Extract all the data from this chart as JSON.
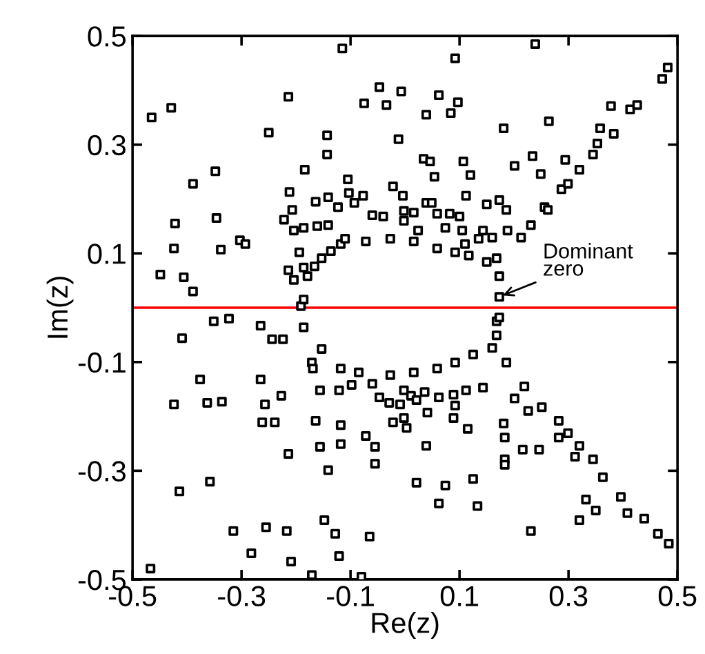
{
  "chart_data": {
    "type": "scatter",
    "xlabel": "Re(z)",
    "ylabel": "Im(z)",
    "xlim": [
      -0.5,
      0.5
    ],
    "ylim": [
      -0.5,
      0.5
    ],
    "xticks": [
      -0.5,
      -0.3,
      -0.1,
      0.1,
      0.3,
      0.5
    ],
    "yticks": [
      -0.5,
      -0.3,
      -0.1,
      0.1,
      0.3,
      0.5
    ],
    "grid": false,
    "legend": false,
    "marker": "square",
    "ref_lines": [
      {
        "axis": "y",
        "value": 0,
        "color": "#ff0000"
      }
    ],
    "annotations": [
      {
        "text": "Dominant\nzero",
        "x": 0.173,
        "y": 0.02
      }
    ],
    "series": [
      {
        "color": "#000000",
        "x": [
          -0.191,
          -0.186,
          -0.179,
          -0.166,
          -0.153,
          -0.136,
          -0.118,
          -0.11,
          -0.072,
          -0.027,
          0.016,
          0.059,
          0.092,
          0.117,
          0.15,
          0.168,
          0.173,
          0.173,
          -0.186,
          -0.153,
          -0.118,
          -0.085,
          -0.027,
          0.016,
          0.059,
          0.092,
          0.125,
          0.16,
          0.168,
          0.168,
          0.173,
          0.186,
          0.219,
          0.251,
          0.282,
          0.299,
          0.32,
          0.345,
          0.363,
          0.396,
          0.439,
          0.464,
          0.484,
          0.312,
          0.332,
          0.35,
          0.32,
          0.408,
          0.213,
          0.231,
          0.256,
          0.287,
          0.299,
          0.32,
          0.345,
          0.353,
          0.358,
          0.383,
          0.378,
          0.413,
          0.426,
          0.472,
          0.482,
          -0.465,
          -0.429,
          -0.389,
          -0.422,
          -0.424,
          -0.449,
          -0.406,
          -0.389,
          -0.348,
          -0.346,
          -0.338,
          -0.303,
          -0.293,
          -0.25,
          -0.214,
          -0.212,
          -0.207,
          -0.222,
          -0.204,
          -0.186,
          -0.161,
          -0.141,
          -0.143,
          -0.143,
          -0.184,
          -0.164,
          -0.141,
          -0.115,
          -0.123,
          -0.194,
          -0.214,
          -0.186,
          -0.204,
          -0.105,
          -0.103,
          0.092,
          0.239,
          -0.047,
          -0.007,
          -0.075,
          -0.034,
          0.062,
          0.097,
          0.039,
          0.084,
          0.181,
          0.264,
          -0.012,
          0.034,
          0.046,
          0.107,
          0.054,
          0.12,
          0.201,
          0.234,
          0.249,
          0.294,
          0.112,
          0.15,
          0.173,
          0.186,
          0.039,
          0.049,
          -0.004,
          -0.022,
          -0.06,
          -0.093,
          -0.077,
          -0.002,
          0.016,
          0.059,
          0.082,
          0.1,
          0.074,
          0.105,
          0.143,
          0.16,
          0.188,
          0.135,
          0.11,
          -0.04,
          -0.002,
          0.024,
          0.262,
          -0.409,
          -0.376,
          -0.424,
          -0.363,
          -0.336,
          -0.265,
          -0.257,
          -0.262,
          -0.239,
          -0.227,
          -0.214,
          -0.358,
          -0.414,
          -0.315,
          -0.255,
          -0.217,
          -0.282,
          -0.209,
          -0.467,
          -0.171,
          -0.148,
          -0.128,
          -0.121,
          -0.164,
          -0.156,
          -0.141,
          -0.118,
          -0.118,
          -0.156,
          -0.121,
          -0.171,
          -0.169,
          -0.244,
          -0.224,
          -0.265,
          -0.351,
          -0.323,
          -0.098,
          -0.06,
          -0.047,
          -0.029,
          -0.009,
          -0.022,
          -0.002,
          0.003,
          -0.002,
          0.011,
          0.021,
          0.036,
          0.041,
          0.062,
          0.089,
          0.092,
          0.089,
          0.115,
          0.112,
          0.143,
          0.181,
          0.183,
          0.183,
          0.183,
          0.201,
          0.226,
          0.216,
          0.246,
          0.282,
          -0.072,
          -0.055,
          -0.055,
          0.039,
          0.021,
          0.074,
          0.125,
          0.062,
          0.133,
          0.231,
          -0.065,
          -0.08
        ],
        "values": [
          0.003,
          0.015,
          0.058,
          0.076,
          0.091,
          0.104,
          0.117,
          0.127,
          0.122,
          0.127,
          0.122,
          0.109,
          0.102,
          0.096,
          0.084,
          0.091,
          0.058,
          0.02,
          -0.036,
          -0.076,
          -0.112,
          -0.119,
          -0.124,
          -0.119,
          -0.112,
          -0.101,
          -0.086,
          -0.074,
          -0.025,
          -0.051,
          -0.018,
          -0.101,
          -0.145,
          -0.183,
          -0.208,
          -0.231,
          -0.254,
          -0.279,
          -0.312,
          -0.348,
          -0.388,
          -0.416,
          -0.434,
          -0.274,
          -0.353,
          -0.373,
          -0.391,
          -0.378,
          0.129,
          0.152,
          0.185,
          0.218,
          0.228,
          0.254,
          0.282,
          0.302,
          0.33,
          0.32,
          0.371,
          0.365,
          0.373,
          0.421,
          0.442,
          0.35,
          0.368,
          0.228,
          0.155,
          0.109,
          0.061,
          0.056,
          0.03,
          0.251,
          0.165,
          0.107,
          0.124,
          0.117,
          0.322,
          0.388,
          0.213,
          0.18,
          0.162,
          0.142,
          0.147,
          0.15,
          0.152,
          0.317,
          0.282,
          0.254,
          0.195,
          0.203,
          0.477,
          0.185,
          0.102,
          0.069,
          0.074,
          0.051,
          0.236,
          0.211,
          0.459,
          0.485,
          0.406,
          0.398,
          0.376,
          0.373,
          0.391,
          0.378,
          0.355,
          0.358,
          0.33,
          0.343,
          0.31,
          0.274,
          0.269,
          0.269,
          0.241,
          0.244,
          0.261,
          0.279,
          0.246,
          0.272,
          0.206,
          0.19,
          0.198,
          0.18,
          0.193,
          0.193,
          0.206,
          0.223,
          0.17,
          0.193,
          0.206,
          0.178,
          0.175,
          0.173,
          0.173,
          0.168,
          0.147,
          0.142,
          0.142,
          0.129,
          0.142,
          0.127,
          0.117,
          0.168,
          0.16,
          0.142,
          0.18,
          -0.056,
          -0.132,
          -0.178,
          -0.175,
          -0.173,
          -0.132,
          -0.178,
          -0.211,
          -0.211,
          -0.162,
          -0.269,
          -0.32,
          -0.338,
          -0.411,
          -0.404,
          -0.411,
          -0.452,
          -0.467,
          -0.48,
          -0.492,
          -0.391,
          -0.416,
          -0.457,
          -0.208,
          -0.256,
          -0.299,
          -0.251,
          -0.216,
          -0.152,
          -0.152,
          -0.101,
          -0.112,
          -0.058,
          -0.058,
          -0.033,
          -0.025,
          -0.02,
          -0.142,
          -0.14,
          -0.165,
          -0.175,
          -0.178,
          -0.211,
          -0.203,
          -0.221,
          -0.152,
          -0.162,
          -0.17,
          -0.155,
          -0.193,
          -0.165,
          -0.16,
          -0.18,
          -0.203,
          -0.223,
          -0.152,
          -0.147,
          -0.213,
          -0.239,
          -0.279,
          -0.289,
          -0.167,
          -0.19,
          -0.261,
          -0.261,
          -0.239,
          -0.236,
          -0.256,
          -0.287,
          -0.254,
          -0.322,
          -0.327,
          -0.315,
          -0.36,
          -0.365,
          -0.411,
          -0.421,
          -0.495
        ]
      }
    ]
  }
}
